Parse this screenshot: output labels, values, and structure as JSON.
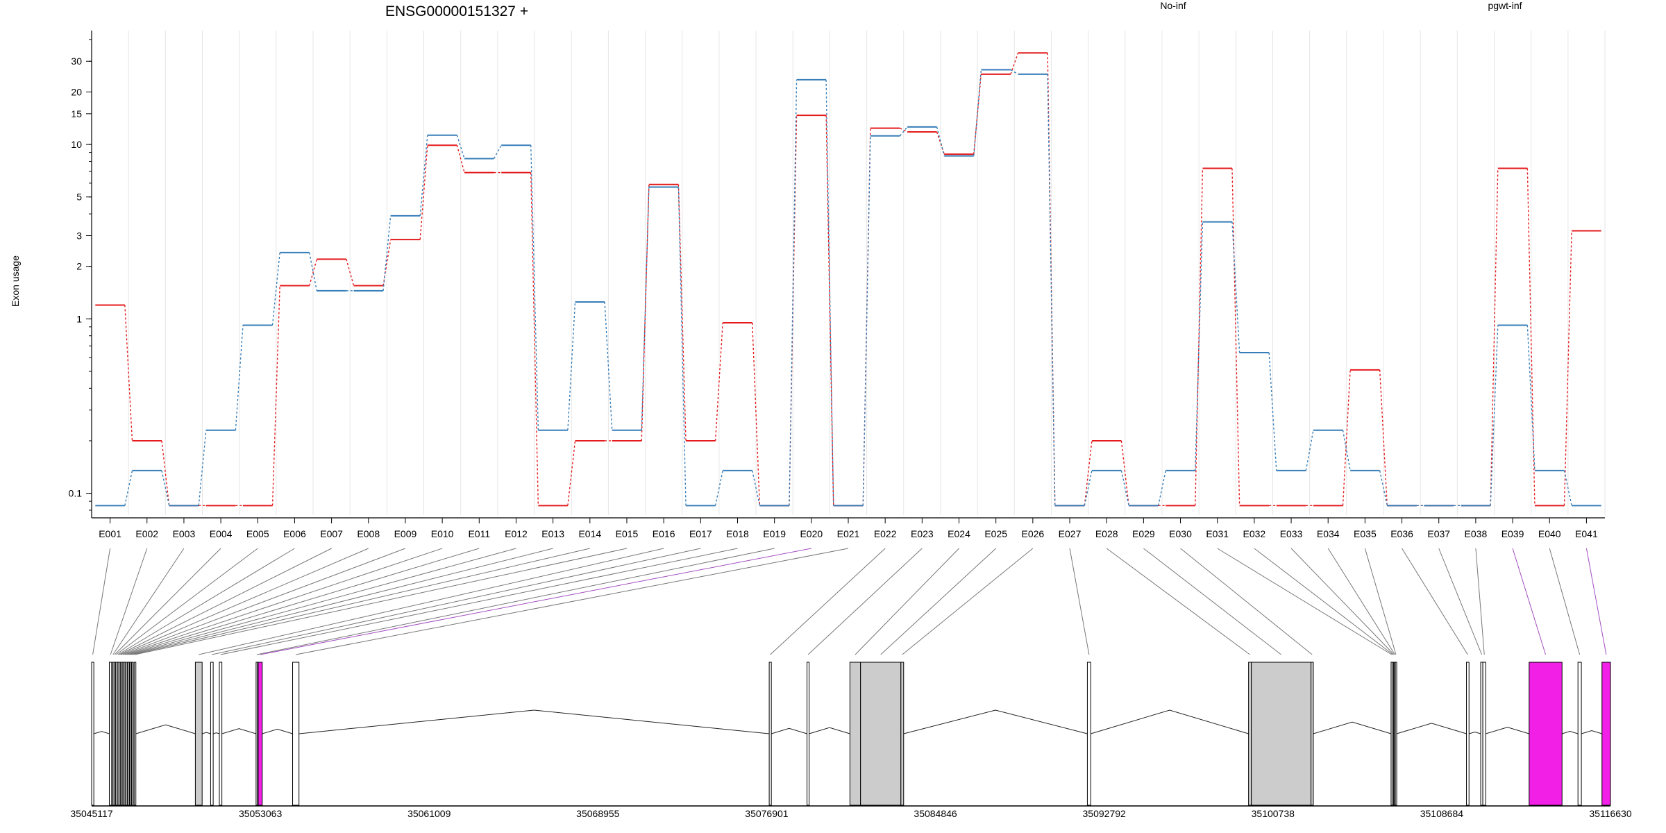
{
  "chart_data": {
    "type": "line",
    "title": "ENSG00000151327 +",
    "ylabel": "Exon usage",
    "y_scale": "log",
    "ylim": [
      0.075,
      45
    ],
    "yticks": [
      0.1,
      1,
      2,
      3,
      5,
      10,
      15,
      20,
      30
    ],
    "grid": true,
    "legend_placement": "top",
    "categories": [
      "E001",
      "E002",
      "E003",
      "E004",
      "E005",
      "E006",
      "E007",
      "E008",
      "E009",
      "E010",
      "E011",
      "E012",
      "E013",
      "E014",
      "E015",
      "E016",
      "E017",
      "E018",
      "E019",
      "E020",
      "E021",
      "E022",
      "E023",
      "E024",
      "E025",
      "E026",
      "E027",
      "E028",
      "E029",
      "E030",
      "E031",
      "E032",
      "E033",
      "E034",
      "E035",
      "E036",
      "E037",
      "E038",
      "E039",
      "E040",
      "E041"
    ],
    "series": [
      {
        "name": "No-inf",
        "color": "#e41a1c",
        "values": [
          1.2,
          0.2,
          0.085,
          0.085,
          0.085,
          1.55,
          2.2,
          1.55,
          2.85,
          9.9,
          6.9,
          6.9,
          0.085,
          0.2,
          0.2,
          5.9,
          0.2,
          0.95,
          0.085,
          14.7,
          0.085,
          12.4,
          11.8,
          8.8,
          25.3,
          33.5,
          0.085,
          0.2,
          0.085,
          0.085,
          7.3,
          0.085,
          0.085,
          0.085,
          0.51,
          0.085,
          0.085,
          0.085,
          7.3,
          0.085,
          3.2
        ]
      },
      {
        "name": "pgwt-inf",
        "color": "#377eb8",
        "values": [
          0.085,
          0.135,
          0.085,
          0.23,
          0.92,
          2.4,
          1.45,
          1.45,
          3.9,
          11.3,
          8.3,
          9.9,
          0.23,
          1.25,
          0.23,
          5.7,
          0.085,
          0.135,
          0.085,
          23.5,
          0.085,
          11.2,
          12.6,
          8.6,
          26.8,
          25.3,
          0.085,
          0.135,
          0.085,
          0.135,
          3.6,
          0.64,
          0.135,
          0.23,
          0.135,
          0.085,
          0.085,
          0.085,
          0.92,
          0.135,
          0.085
        ]
      }
    ],
    "gene_model": {
      "coordinate_ticks": [
        "35045117",
        "35053063",
        "35061009",
        "35068955",
        "35076901",
        "35084846",
        "35092792",
        "35100738",
        "35108684",
        "35116630"
      ],
      "genomic_start": 35045117,
      "genomic_end": 35116630,
      "exons": [
        {
          "id": "E001",
          "start": 35045117,
          "end": 35045220,
          "fill": "none"
        },
        {
          "id": "E002",
          "start": 35045950,
          "end": 35046060,
          "fill": "none"
        },
        {
          "id": "E003",
          "start": 35046100,
          "end": 35046150,
          "fill": "none"
        },
        {
          "id": "E004",
          "start": 35046180,
          "end": 35046230,
          "fill": "none"
        },
        {
          "id": "E005",
          "start": 35046250,
          "end": 35046300,
          "fill": "none"
        },
        {
          "id": "E006",
          "start": 35046330,
          "end": 35046380,
          "fill": "none"
        },
        {
          "id": "E007",
          "start": 35046400,
          "end": 35046450,
          "fill": "none"
        },
        {
          "id": "E008",
          "start": 35046470,
          "end": 35046520,
          "fill": "none"
        },
        {
          "id": "E009",
          "start": 35046560,
          "end": 35046610,
          "fill": "none"
        },
        {
          "id": "E010",
          "start": 35046650,
          "end": 35046700,
          "fill": "none"
        },
        {
          "id": "E011",
          "start": 35046740,
          "end": 35046790,
          "fill": "none"
        },
        {
          "id": "E012",
          "start": 35046830,
          "end": 35046880,
          "fill": "none"
        },
        {
          "id": "E013",
          "start": 35046920,
          "end": 35046970,
          "fill": "none"
        },
        {
          "id": "E014",
          "start": 35047010,
          "end": 35047060,
          "fill": "none"
        },
        {
          "id": "E015",
          "start": 35047120,
          "end": 35047200,
          "fill": "none"
        },
        {
          "id": "E016",
          "start": 35050000,
          "end": 35050320,
          "fill": "grey"
        },
        {
          "id": "E017",
          "start": 35050720,
          "end": 35050840,
          "fill": "none"
        },
        {
          "id": "E018",
          "start": 35051130,
          "end": 35051250,
          "fill": "none"
        },
        {
          "id": "E019",
          "start": 35052860,
          "end": 35052920,
          "fill": "none"
        },
        {
          "id": "E020",
          "start": 35052960,
          "end": 35053150,
          "fill": "magenta"
        },
        {
          "id": "E021",
          "start": 35054580,
          "end": 35054880,
          "fill": "none"
        },
        {
          "id": "E022",
          "start": 35077020,
          "end": 35077120,
          "fill": "none"
        },
        {
          "id": "E023",
          "start": 35078800,
          "end": 35078900,
          "fill": "none"
        },
        {
          "id": "E024",
          "start": 35080820,
          "end": 35081320,
          "fill": "grey"
        },
        {
          "id": "E025",
          "start": 35081320,
          "end": 35083220,
          "fill": "grey"
        },
        {
          "id": "E026",
          "start": 35083220,
          "end": 35083350,
          "fill": "grey"
        },
        {
          "id": "E027",
          "start": 35092000,
          "end": 35092160,
          "fill": "none"
        },
        {
          "id": "E028",
          "start": 35099590,
          "end": 35099720,
          "fill": "grey"
        },
        {
          "id": "E029",
          "start": 35099720,
          "end": 35102530,
          "fill": "grey"
        },
        {
          "id": "E030",
          "start": 35102530,
          "end": 35102640,
          "fill": "grey"
        },
        {
          "id": "E031",
          "start": 35106300,
          "end": 35106360,
          "fill": "none"
        },
        {
          "id": "E032",
          "start": 35106360,
          "end": 35106420,
          "fill": "none"
        },
        {
          "id": "E033",
          "start": 35106420,
          "end": 35106460,
          "fill": "none"
        },
        {
          "id": "E034",
          "start": 35106460,
          "end": 35106500,
          "fill": "none"
        },
        {
          "id": "E035",
          "start": 35106500,
          "end": 35106560,
          "fill": "none"
        },
        {
          "id": "E036",
          "start": 35109850,
          "end": 35109970,
          "fill": "none"
        },
        {
          "id": "E037",
          "start": 35110520,
          "end": 35110620,
          "fill": "none"
        },
        {
          "id": "E038",
          "start": 35110620,
          "end": 35110760,
          "fill": "none"
        },
        {
          "id": "E039",
          "start": 35112800,
          "end": 35114350,
          "fill": "magenta"
        },
        {
          "id": "E040",
          "start": 35115100,
          "end": 35115260,
          "fill": "none"
        },
        {
          "id": "E041",
          "start": 35116230,
          "end": 35116630,
          "fill": "magenta"
        }
      ]
    }
  }
}
